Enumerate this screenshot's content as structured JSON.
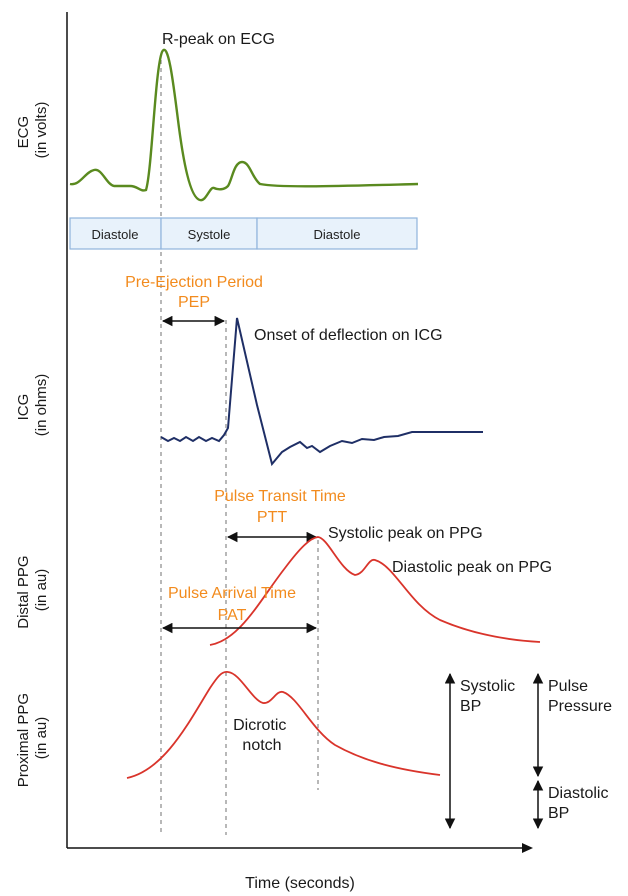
{
  "axes": {
    "x_label": "Time (seconds)",
    "ecg_label": [
      "ECG",
      "(in volts)"
    ],
    "icg_label": [
      "ICG",
      "(in ohms)"
    ],
    "distal_label": [
      "Distal PPG",
      "(in au)"
    ],
    "proximal_label": [
      "Proximal PPG",
      "(in au)"
    ]
  },
  "phases": [
    "Diastole",
    "Systole",
    "Diastole"
  ],
  "annotations": {
    "r_peak": "R-peak on ECG",
    "pep_title": "Pre-Ejection Period",
    "pep_abbr": "PEP",
    "icg_onset": "Onset of deflection on ICG",
    "ptt_title": "Pulse Transit Time",
    "ptt_abbr": "PTT",
    "systolic_peak": "Systolic peak on PPG",
    "diastolic_peak": "Diastolic peak on PPG",
    "pat_title": "Pulse Arrival Time",
    "pat_abbr": "PAT",
    "dicrotic": [
      "Dicrotic",
      "notch"
    ],
    "systolic_bp": [
      "Systolic",
      "BP"
    ],
    "pulse_pressure": [
      "Pulse",
      "Pressure"
    ],
    "diastolic_bp": [
      "Diastolic",
      "BP"
    ]
  },
  "colors": {
    "ecg": "#5a8a1f",
    "icg": "#1f2f66",
    "ppg": "#d9342b",
    "highlight": "#f28b1e",
    "phase_fill": "#e8f2fb",
    "phase_stroke": "#8fb3dc"
  }
}
